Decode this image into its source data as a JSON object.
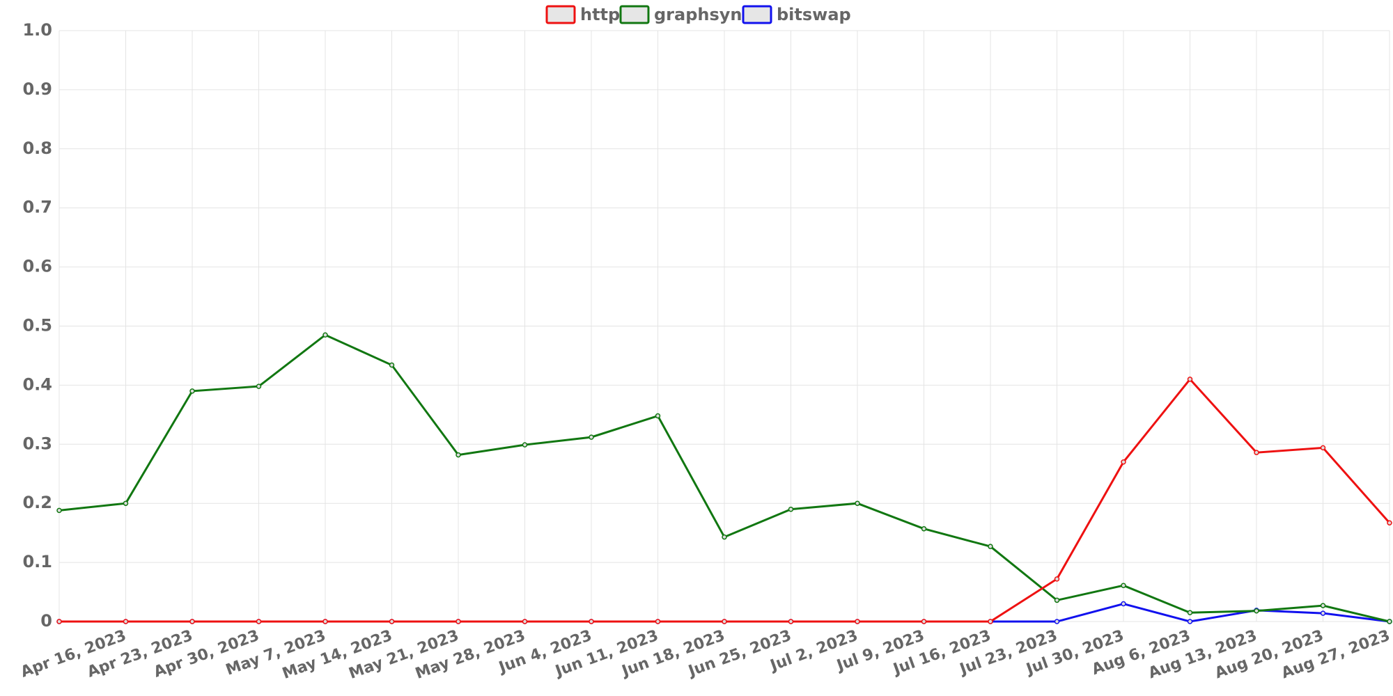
{
  "chart_data": {
    "type": "line",
    "categories": [
      null,
      "Apr 16, 2023",
      "Apr 23, 2023",
      "Apr 30, 2023",
      "May 7, 2023",
      "May 14, 2023",
      "May 21, 2023",
      "May 28, 2023",
      "Jun 4, 2023",
      "Jun 11, 2023",
      "Jun 18, 2023",
      "Jun 25, 2023",
      "Jul 2, 2023",
      "Jul 9, 2023",
      "Jul 16, 2023",
      "Jul 23, 2023",
      "Jul 30, 2023",
      "Aug 6, 2023",
      "Aug 13, 2023",
      "Aug 20, 2023",
      "Aug 27, 2023"
    ],
    "series": [
      {
        "name": "http",
        "color": "#ee1111",
        "values": [
          0,
          0,
          0,
          0,
          0,
          0,
          0,
          0,
          0,
          0,
          0,
          0,
          0,
          0,
          0,
          0.072,
          0.27,
          0.41,
          0.286,
          0.294,
          0.167
        ]
      },
      {
        "name": "graphsync",
        "color": "#117711",
        "values": [
          0.188,
          0.2,
          0.39,
          0.398,
          0.485,
          0.434,
          0.282,
          0.299,
          0.312,
          0.348,
          0.143,
          0.19,
          0.2,
          0.157,
          0.127,
          0.036,
          0.061,
          0.015,
          0.018,
          0.027,
          0
        ]
      },
      {
        "name": "bitswap",
        "color": "#1111ee",
        "values": [
          0,
          0,
          0,
          0,
          0,
          0,
          0,
          0,
          0,
          0,
          0,
          0,
          0,
          0,
          0,
          0,
          0.03,
          0,
          0.019,
          0.014,
          0
        ]
      }
    ],
    "ylim": [
      0,
      1
    ],
    "yticks": [
      0,
      0.1,
      0.2,
      0.3,
      0.4,
      0.5,
      0.6,
      0.7,
      0.8,
      0.9,
      {
        "value": 1,
        "label": "1.0"
      }
    ],
    "grid": true,
    "legend": "top"
  }
}
